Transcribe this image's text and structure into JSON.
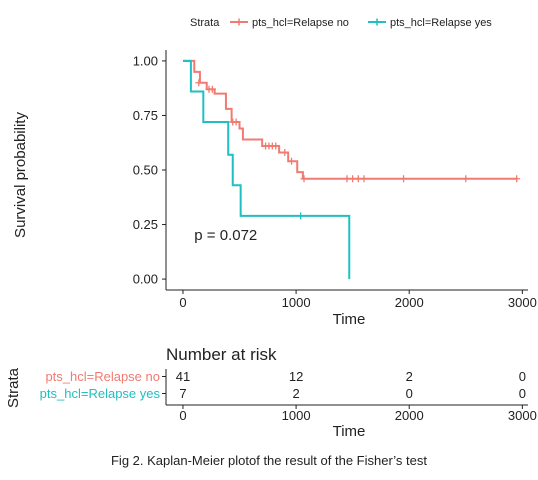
{
  "chart_data": [
    {
      "type": "line",
      "subtype": "kaplan-meier step",
      "xlabel": "Time",
      "ylabel": "Survival probability",
      "xlim": [
        -150,
        3050
      ],
      "ylim": [
        -0.05,
        1.05
      ],
      "x_ticks": [
        0,
        1000,
        2000,
        3000
      ],
      "y_ticks": [
        0.0,
        0.25,
        0.5,
        0.75,
        1.0
      ],
      "y_tick_labels": [
        "0.00",
        "0.25",
        "0.50",
        "0.75",
        "1.00"
      ],
      "grid": false,
      "legend": {
        "title": "Strata",
        "position": "top",
        "entries": [
          "pts_hcl=Relapse no",
          "pts_hcl=Relapse yes"
        ]
      },
      "annotation": "p = 0.072",
      "annotation_at": {
        "x": 100,
        "y": 0.18
      },
      "series": [
        {
          "name": "pts_hcl=Relapse no",
          "color": "#f07b72",
          "steps": [
            [
              0,
              1.0
            ],
            [
              100,
              0.95
            ],
            [
              150,
              0.9
            ],
            [
              210,
              0.87
            ],
            [
              280,
              0.85
            ],
            [
              380,
              0.78
            ],
            [
              430,
              0.72
            ],
            [
              500,
              0.69
            ],
            [
              530,
              0.64
            ],
            [
              700,
              0.61
            ],
            [
              850,
              0.58
            ],
            [
              930,
              0.54
            ],
            [
              1010,
              0.49
            ],
            [
              1060,
              0.46
            ],
            [
              2950,
              0.46
            ]
          ],
          "censored": [
            [
              140,
              0.9
            ],
            [
              230,
              0.87
            ],
            [
              260,
              0.87
            ],
            [
              440,
              0.72
            ],
            [
              470,
              0.72
            ],
            [
              730,
              0.61
            ],
            [
              760,
              0.61
            ],
            [
              790,
              0.61
            ],
            [
              820,
              0.61
            ],
            [
              900,
              0.58
            ],
            [
              960,
              0.54
            ],
            [
              1070,
              0.46
            ],
            [
              1450,
              0.46
            ],
            [
              1500,
              0.46
            ],
            [
              1550,
              0.46
            ],
            [
              1600,
              0.46
            ],
            [
              1950,
              0.46
            ],
            [
              2500,
              0.46
            ],
            [
              2950,
              0.46
            ]
          ]
        },
        {
          "name": "pts_hcl=Relapse yes",
          "color": "#1fbfc3",
          "steps": [
            [
              0,
              1.0
            ],
            [
              70,
              0.86
            ],
            [
              180,
              0.72
            ],
            [
              400,
              0.57
            ],
            [
              440,
              0.43
            ],
            [
              510,
              0.29
            ],
            [
              1470,
              0.29
            ],
            [
              1470,
              0.0
            ]
          ],
          "censored": [
            [
              1040,
              0.29
            ]
          ]
        }
      ]
    },
    {
      "type": "table",
      "title": "Number at risk",
      "ylabel": "Strata",
      "xlabel": "Time",
      "x_ticks": [
        0,
        1000,
        2000,
        3000
      ],
      "rows": [
        {
          "name": "pts_hcl=Relapse no",
          "color": "#f07b72",
          "values": [
            "41",
            "12",
            "2",
            "0"
          ]
        },
        {
          "name": "pts_hcl=Relapse yes",
          "color": "#1fbfc3",
          "values": [
            "7",
            "2",
            "0",
            "0"
          ]
        }
      ]
    }
  ],
  "caption": "Fig 2. Kaplan-Meier plotof the result of the Fisher’s test"
}
